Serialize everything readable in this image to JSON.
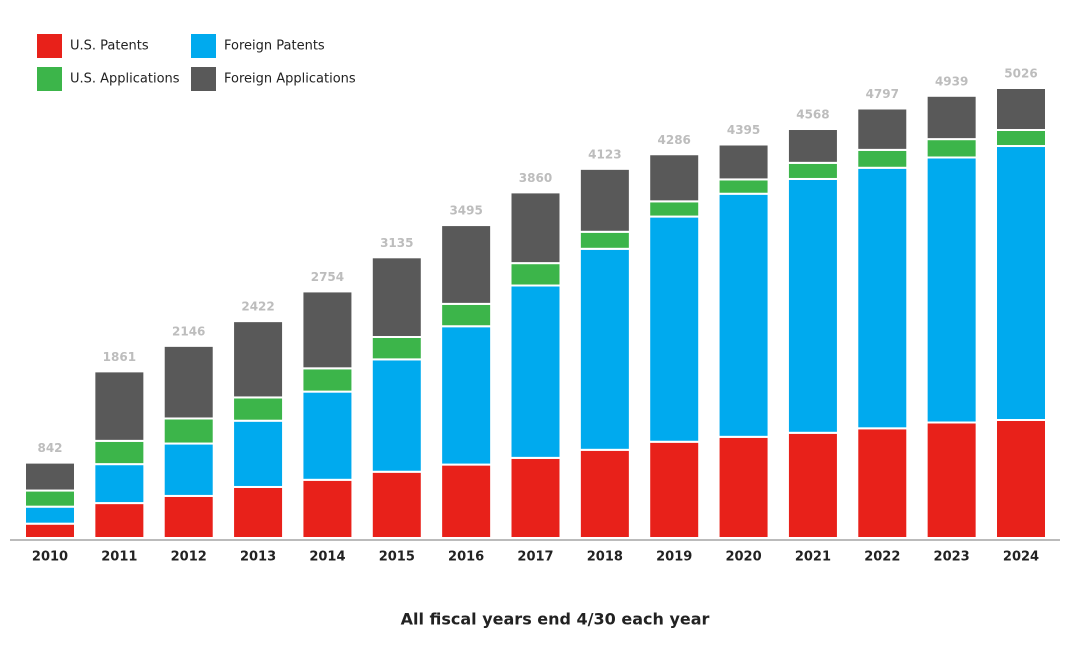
{
  "chart_data": {
    "type": "stacked-bar",
    "categories": [
      "2010",
      "2011",
      "2012",
      "2013",
      "2014",
      "2015",
      "2016",
      "2017",
      "2018",
      "2019",
      "2020",
      "2021",
      "2022",
      "2023",
      "2024"
    ],
    "series": [
      {
        "name": "U.S. Patents",
        "color": "#e8211a",
        "values": [
          160,
          390,
          470,
          570,
          650,
          740,
          820,
          895,
          985,
          1075,
          1130,
          1175,
          1225,
          1290,
          1318
        ]
      },
      {
        "name": "Foreign Patents",
        "color": "#00aaee",
        "values": [
          190,
          435,
          585,
          740,
          985,
          1255,
          1545,
          1925,
          2245,
          2515,
          2715,
          2835,
          2910,
          2960,
          3060
        ]
      },
      {
        "name": "U.S. Applications",
        "color": "#3cb54a",
        "values": [
          180,
          260,
          280,
          260,
          260,
          250,
          250,
          250,
          190,
          170,
          160,
          180,
          200,
          205,
          179
        ]
      },
      {
        "name": "Foreign Applications",
        "color": "#595959",
        "values": [
          312,
          776,
          811,
          852,
          859,
          890,
          880,
          790,
          703,
          526,
          390,
          378,
          462,
          484,
          469
        ]
      }
    ],
    "totals": [
      842,
      1861,
      2146,
      2422,
      2754,
      3135,
      3495,
      3860,
      4123,
      4286,
      4395,
      4568,
      4797,
      4939,
      5026
    ],
    "ylim": [
      0,
      5026
    ],
    "legend": "top-left",
    "note": "All fiscal years end 4/30 each year"
  }
}
